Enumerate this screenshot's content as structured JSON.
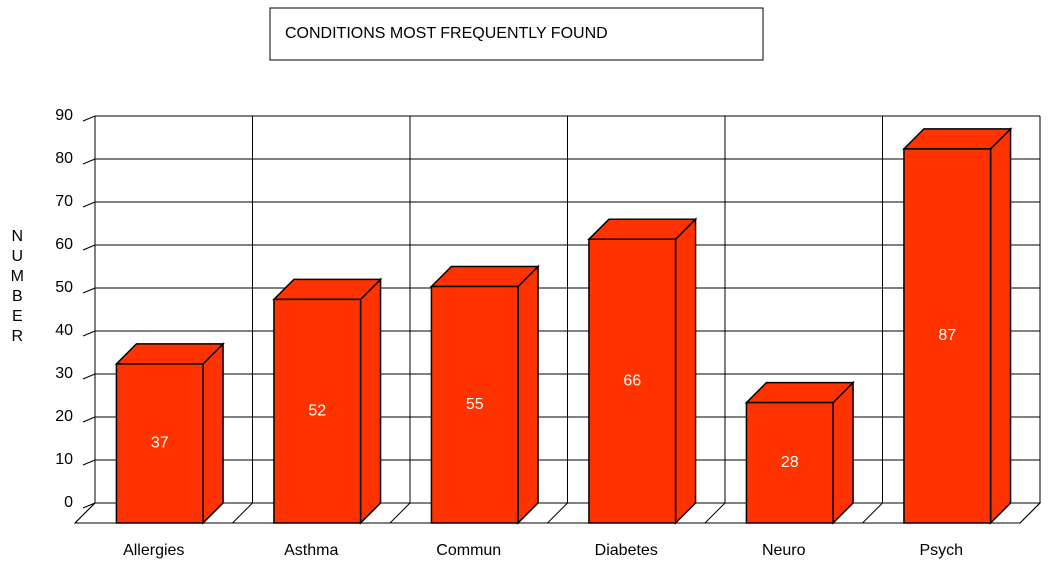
{
  "chart_data": {
    "type": "bar3d",
    "title": "CONDITIONS MOST FREQUENTLY FOUND",
    "y_label": "NUMBER",
    "categories": [
      "Allergies",
      "Asthma",
      "Commun",
      "Diabetes",
      "Neuro",
      "Psych"
    ],
    "values": [
      37,
      52,
      55,
      66,
      28,
      87
    ],
    "color": "#ff3300",
    "ylim": [
      0,
      90
    ],
    "yticks": [
      0,
      10,
      20,
      30,
      40,
      50,
      60,
      70,
      80,
      90
    ],
    "grid": true
  }
}
